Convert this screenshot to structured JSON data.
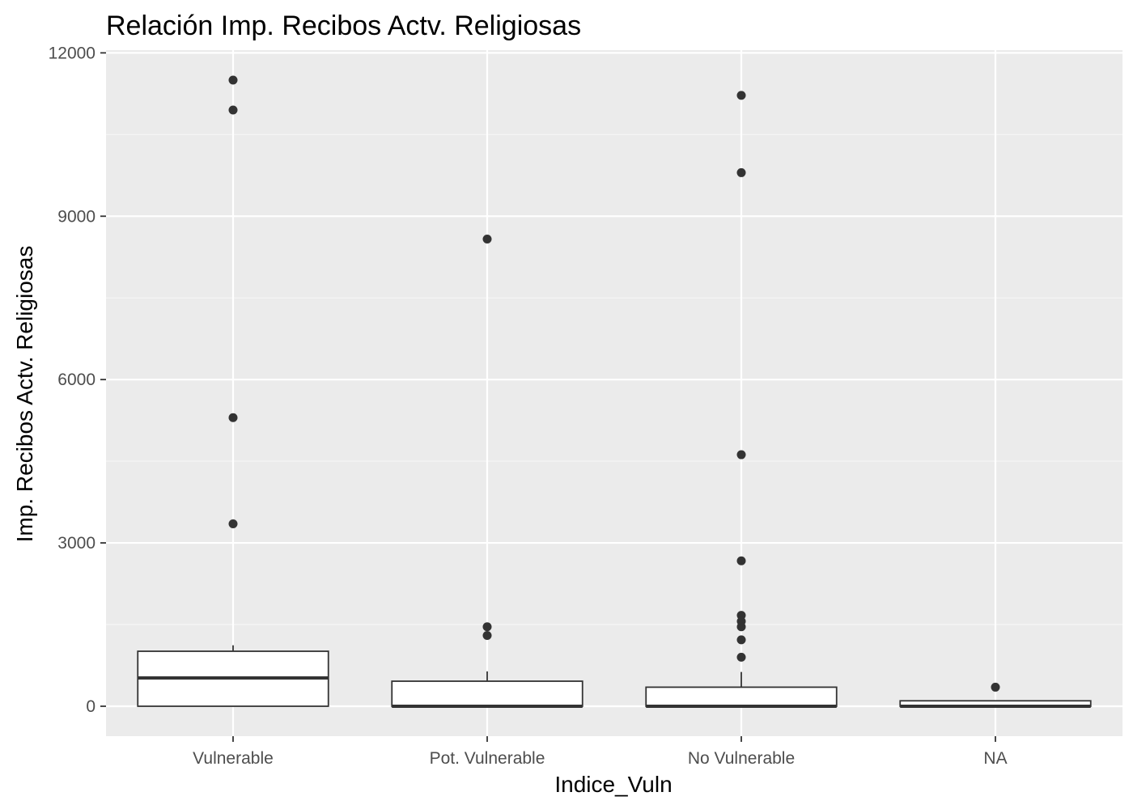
{
  "chart_data": {
    "type": "boxplot",
    "title": "Relación  Imp. Recibos Actv. Religiosas",
    "xlabel": "Indice_Vuln",
    "ylabel": "Imp. Recibos Actv. Religiosas",
    "ylim": [
      -550,
      12050
    ],
    "yticks": [
      0,
      3000,
      6000,
      9000,
      12000
    ],
    "yticks_labels": [
      "0",
      "3000",
      "6000",
      "9000",
      "12000"
    ],
    "grid": true,
    "categories": [
      "Vulnerable",
      "Pot. Vulnerable",
      "No Vulnerable",
      "NA"
    ],
    "boxes": [
      {
        "category": "Vulnerable",
        "min": 0,
        "q1": 0,
        "median": 520,
        "q3": 1010,
        "max": 1120,
        "outliers": [
          11500,
          10950,
          5300,
          3350
        ]
      },
      {
        "category": "Pot. Vulnerable",
        "min": 0,
        "q1": 0,
        "median": 0,
        "q3": 460,
        "max": 640,
        "outliers": [
          8580,
          1460,
          1300
        ]
      },
      {
        "category": "No Vulnerable",
        "min": 0,
        "q1": 0,
        "median": 0,
        "q3": 350,
        "max": 630,
        "outliers": [
          11220,
          9800,
          4620,
          2670,
          1670,
          1560,
          1460,
          1220,
          900
        ]
      },
      {
        "category": "NA",
        "min": 0,
        "q1": 0,
        "median": 0,
        "q3": 100,
        "max": 100,
        "outliers": [
          350
        ]
      }
    ],
    "colors": {
      "panel_background": "#EBEBEB",
      "grid_major": "#FFFFFF",
      "grid_minor": "#F5F5F5",
      "box_fill": "#FFFFFF",
      "box_stroke": "#333333",
      "outlier": "#333333",
      "tick_text": "#4D4D4D"
    }
  }
}
